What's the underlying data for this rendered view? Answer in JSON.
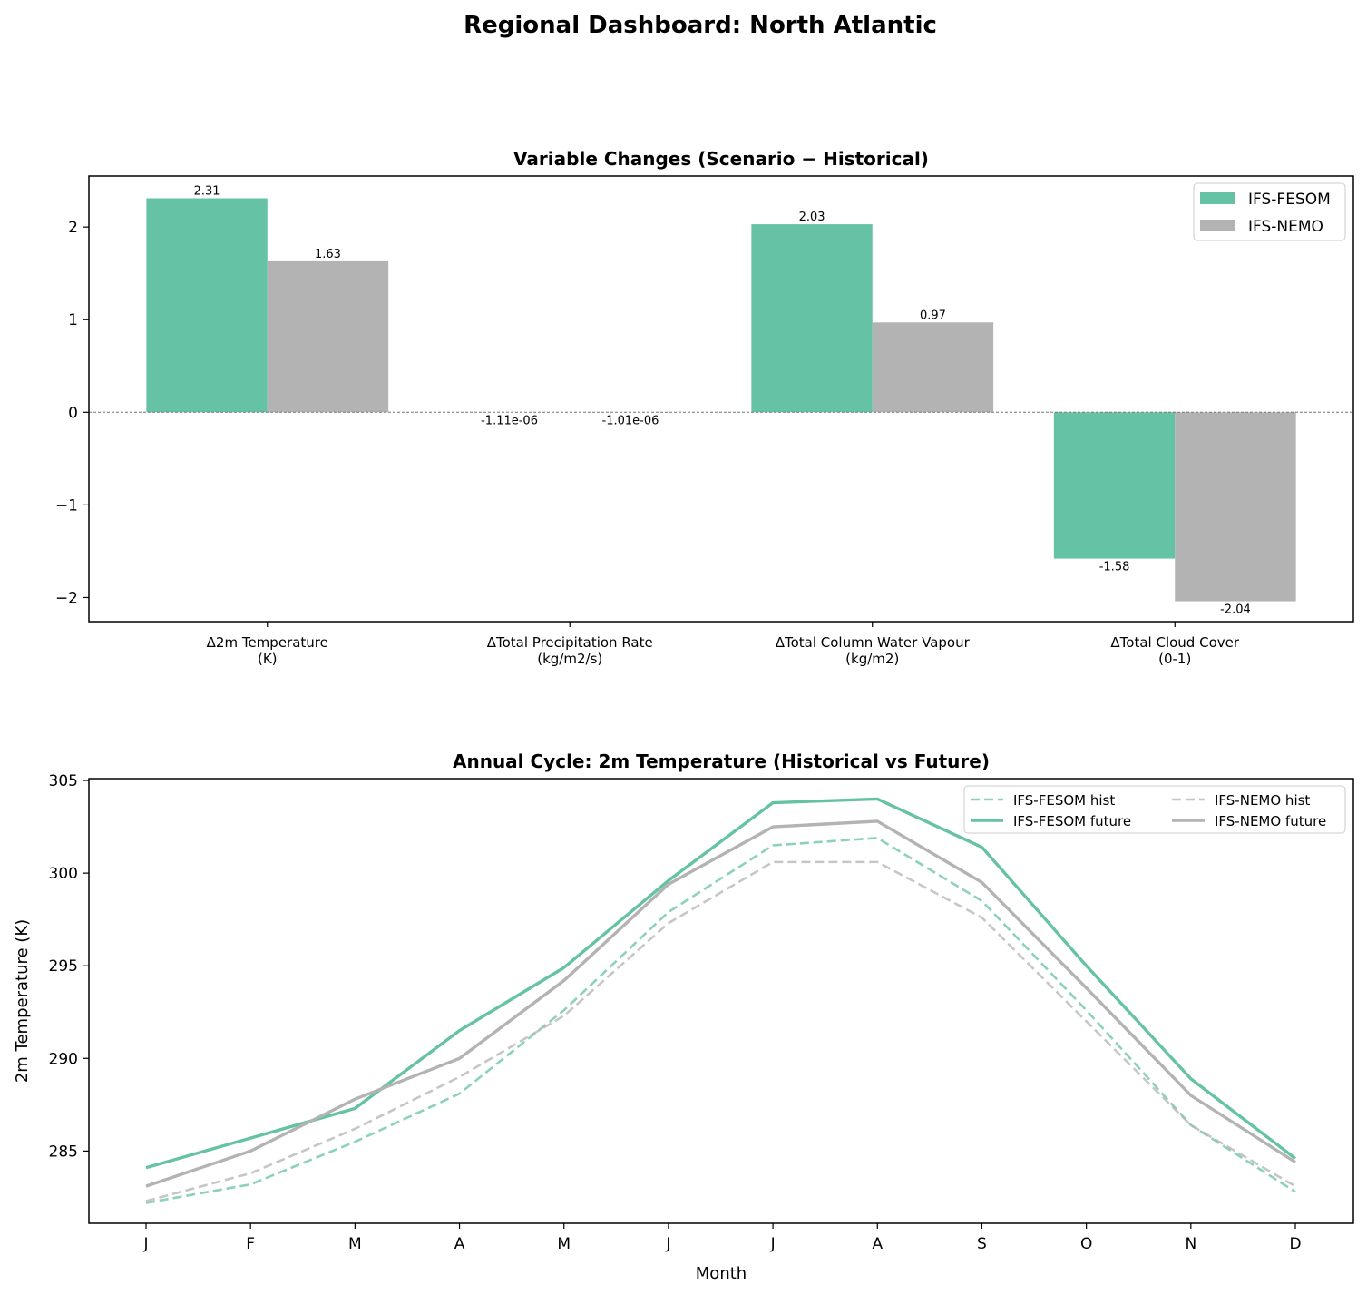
{
  "figure_title": "Regional Dashboard: North Atlantic",
  "colors": {
    "IFS-FESOM": "#66c2a5",
    "IFS-NEMO": "#b3b3b3"
  },
  "chart_data": [
    {
      "type": "bar",
      "title": "Variable Changes (Scenario − Historical)",
      "categories": [
        [
          "Δ2m Temperature",
          "(K)"
        ],
        [
          "ΔTotal Precipitation Rate",
          "(kg/m2/s)"
        ],
        [
          "ΔTotal Column Water Vapour",
          "(kg/m2)"
        ],
        [
          "ΔTotal Cloud Cover",
          "(0-1)"
        ]
      ],
      "series": [
        {
          "name": "IFS-FESOM",
          "values": [
            2.31,
            -1.11e-06,
            2.03,
            -1.58
          ],
          "labels": [
            "2.31",
            "-1.11e-06",
            "2.03",
            "-1.58"
          ]
        },
        {
          "name": "IFS-NEMO",
          "values": [
            1.63,
            -1.01e-06,
            0.97,
            -2.04
          ],
          "labels": [
            "1.63",
            "-1.01e-06",
            "0.97",
            "-2.04"
          ]
        }
      ],
      "yticks": [
        -2,
        -1,
        0,
        1,
        2
      ],
      "ytick_labels": [
        "−2",
        "−1",
        "0",
        "1",
        "2"
      ],
      "ylim": [
        -2.26,
        2.55
      ],
      "zero_line": "dashed",
      "legend_placement": "top-right",
      "grid": false
    },
    {
      "type": "line",
      "title": "Annual Cycle: 2m Temperature (Historical vs Future)",
      "xlabel": "Month",
      "ylabel": "2m Temperature (K)",
      "categories": [
        "J",
        "F",
        "M",
        "A",
        "M",
        "J",
        "J",
        "A",
        "S",
        "O",
        "N",
        "D"
      ],
      "yticks": [
        285,
        290,
        295,
        300,
        305
      ],
      "ylim": [
        281.1,
        305.1
      ],
      "legend_placement": "top-right",
      "grid": false,
      "series": [
        {
          "name": "IFS-FESOM hist",
          "model": "IFS-FESOM",
          "style": "dashed",
          "values": [
            282.2,
            283.2,
            285.5,
            288.1,
            292.6,
            297.9,
            301.5,
            301.9,
            298.5,
            292.6,
            286.4,
            282.8
          ]
        },
        {
          "name": "IFS-FESOM future",
          "model": "IFS-FESOM",
          "style": "solid",
          "values": [
            284.1,
            285.7,
            287.3,
            291.5,
            294.9,
            299.6,
            303.8,
            304.0,
            301.4,
            295.0,
            288.9,
            284.6
          ]
        },
        {
          "name": "IFS-NEMO hist",
          "model": "IFS-NEMO",
          "style": "dashed",
          "values": [
            282.3,
            283.8,
            286.2,
            289.0,
            292.3,
            297.3,
            300.6,
            300.6,
            297.6,
            292.0,
            286.4,
            283.1
          ]
        },
        {
          "name": "IFS-NEMO future",
          "model": "IFS-NEMO",
          "style": "solid",
          "values": [
            283.1,
            285.0,
            287.8,
            290.0,
            294.2,
            299.4,
            302.5,
            302.8,
            299.5,
            293.8,
            288.0,
            284.4
          ]
        }
      ]
    }
  ]
}
